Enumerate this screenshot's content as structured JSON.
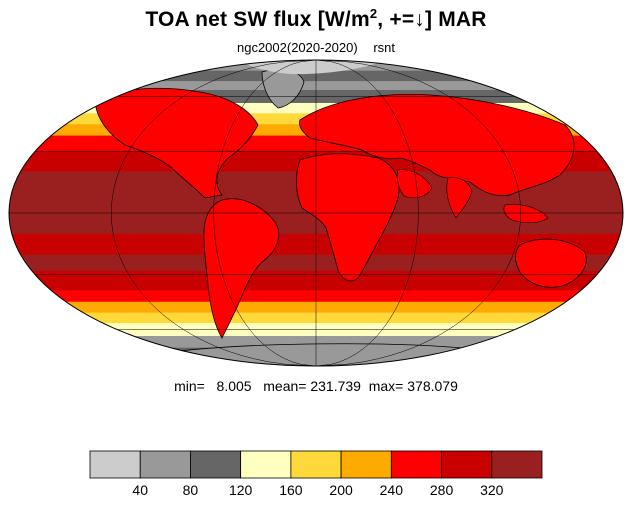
{
  "title": {
    "main": "TOA net SW flux [W/m",
    "sup": "2",
    "rest": ", +=↓]  MAR"
  },
  "subtitle": {
    "experiment": "ngc2002(2020-2020)",
    "variable": "rsnt"
  },
  "stats": {
    "min_label": "min=",
    "min": "8.005",
    "mean_label": "mean=",
    "mean": "231.739",
    "max_label": "max=",
    "max": "378.079"
  },
  "colorbar": {
    "colors": [
      "#cccccc",
      "#999999",
      "#666666",
      "#ffffc0",
      "#ffd83a",
      "#ffaa00",
      "#ff0000",
      "#c80000",
      "#9a2020"
    ],
    "labels": [
      "40",
      "80",
      "120",
      "160",
      "200",
      "240",
      "280",
      "320"
    ]
  },
  "map": {
    "projection": "mollweide",
    "zonal_bands": [
      {
        "lat_from": 90,
        "lat_to": 78,
        "color": "#999999"
      },
      {
        "lat_from": 78,
        "lat_to": 70,
        "color": "#666666"
      },
      {
        "lat_from": 70,
        "lat_to": 64,
        "color": "#999999"
      },
      {
        "lat_from": 64,
        "lat_to": 56,
        "color": "#666666"
      },
      {
        "lat_from": 56,
        "lat_to": 50,
        "color": "#ffffc0"
      },
      {
        "lat_from": 50,
        "lat_to": 44,
        "color": "#ffd83a"
      },
      {
        "lat_from": 44,
        "lat_to": 38,
        "color": "#ffaa00"
      },
      {
        "lat_from": 38,
        "lat_to": 30,
        "color": "#ff0000"
      },
      {
        "lat_from": 30,
        "lat_to": 20,
        "color": "#c80000"
      },
      {
        "lat_from": 20,
        "lat_to": -10,
        "color": "#9a2020"
      },
      {
        "lat_from": -10,
        "lat_to": -20,
        "color": "#c80000"
      },
      {
        "lat_from": -20,
        "lat_to": -28,
        "color": "#9a2020"
      },
      {
        "lat_from": -28,
        "lat_to": -38,
        "color": "#c80000"
      },
      {
        "lat_from": -38,
        "lat_to": -44,
        "color": "#ff0000"
      },
      {
        "lat_from": -44,
        "lat_to": -50,
        "color": "#ffaa00"
      },
      {
        "lat_from": -50,
        "lat_to": -56,
        "color": "#ffd83a"
      },
      {
        "lat_from": -56,
        "lat_to": -64,
        "color": "#ffffc0"
      },
      {
        "lat_from": -64,
        "lat_to": -72,
        "color": "#999999"
      },
      {
        "lat_from": -72,
        "lat_to": -90,
        "color": "#666666"
      }
    ],
    "graticule_lats": [
      -60,
      -30,
      0,
      30,
      60
    ],
    "graticule_lons": [
      -120,
      -60,
      0,
      60,
      120
    ]
  }
}
